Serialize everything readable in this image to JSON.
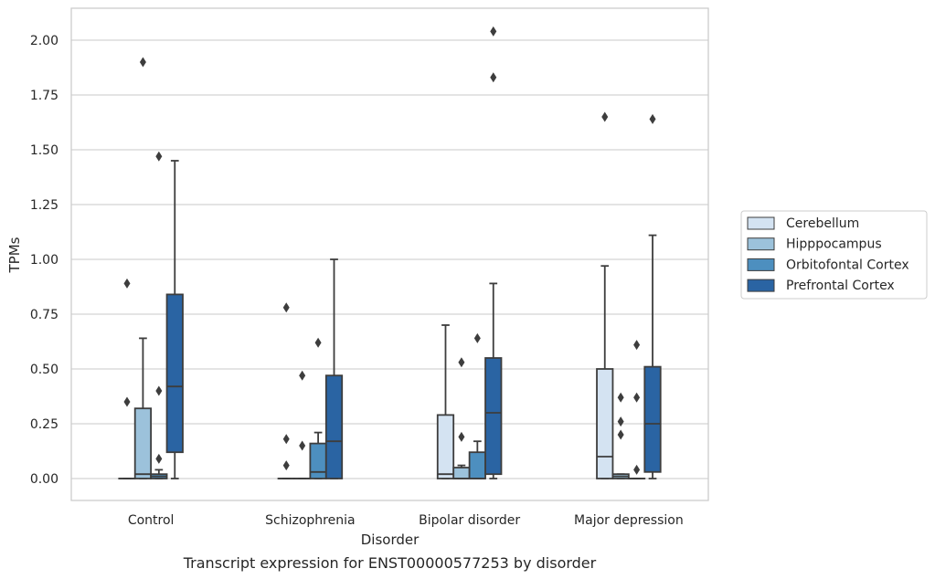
{
  "caption": "Transcript expression for ENST00000577253 by disorder",
  "chart_data": {
    "type": "box",
    "title": "",
    "xlabel": "Disorder",
    "ylabel": "TPMs",
    "ylim": [
      -0.1,
      2.15
    ],
    "yticks": [
      "0.00",
      "0.25",
      "0.50",
      "0.75",
      "1.00",
      "1.25",
      "1.50",
      "1.75",
      "2.00"
    ],
    "grid": "horizontal",
    "legend_position": "right",
    "categories": [
      "Control",
      "Schizophrenia",
      "Bipolar disorder",
      "Major depression"
    ],
    "series": [
      {
        "name": "Cerebellum",
        "color": "#d4e3f2",
        "boxes": [
          {
            "min": 0,
            "q1": 0,
            "median": 0,
            "q3": 0,
            "max": 0,
            "outliers": [
              0.35,
              0.89
            ]
          },
          {
            "min": 0,
            "q1": 0,
            "median": 0,
            "q3": 0,
            "max": 0,
            "outliers": [
              0.06,
              0.18,
              0.78
            ]
          },
          {
            "min": 0,
            "q1": 0,
            "median": 0.02,
            "q3": 0.29,
            "max": 0.7,
            "outliers": []
          },
          {
            "min": 0,
            "q1": 0,
            "median": 0.1,
            "q3": 0.5,
            "max": 0.97,
            "outliers": [
              1.65
            ]
          }
        ]
      },
      {
        "name": "Hipppocampus",
        "color": "#9cc2db",
        "boxes": [
          {
            "min": 0,
            "q1": 0,
            "median": 0.02,
            "q3": 0.32,
            "max": 0.64,
            "outliers": [
              1.9
            ]
          },
          {
            "min": 0,
            "q1": 0,
            "median": 0,
            "q3": 0,
            "max": 0,
            "outliers": [
              0.15,
              0.47
            ]
          },
          {
            "min": 0,
            "q1": 0,
            "median": 0,
            "q3": 0.05,
            "max": 0.06,
            "outliers": [
              0.19,
              0.53
            ]
          },
          {
            "min": 0,
            "q1": 0,
            "median": 0.01,
            "q3": 0.02,
            "max": 0.02,
            "outliers": [
              0.26,
              0.2,
              0.37
            ]
          }
        ]
      },
      {
        "name": "Orbitofontal Cortex",
        "color": "#4d8fbf",
        "boxes": [
          {
            "min": 0,
            "q1": 0,
            "median": 0.01,
            "q3": 0.02,
            "max": 0.04,
            "outliers": [
              0.09,
              0.4,
              1.47
            ]
          },
          {
            "min": 0,
            "q1": 0,
            "median": 0.03,
            "q3": 0.16,
            "max": 0.21,
            "outliers": [
              0.62
            ]
          },
          {
            "min": 0,
            "q1": 0,
            "median": 0,
            "q3": 0.12,
            "max": 0.17,
            "outliers": [
              0.64
            ]
          },
          {
            "min": 0,
            "q1": 0,
            "median": 0,
            "q3": 0,
            "max": 0,
            "outliers": [
              0.04,
              0.37,
              0.61
            ]
          }
        ]
      },
      {
        "name": "Prefrontal Cortex",
        "color": "#2a64a3",
        "boxes": [
          {
            "min": 0,
            "q1": 0.12,
            "median": 0.42,
            "q3": 0.84,
            "max": 1.45,
            "outliers": []
          },
          {
            "min": 0,
            "q1": 0,
            "median": 0.17,
            "q3": 0.47,
            "max": 1.0,
            "outliers": []
          },
          {
            "min": 0,
            "q1": 0.02,
            "median": 0.3,
            "q3": 0.55,
            "max": 0.89,
            "outliers": [
              1.83,
              2.04
            ]
          },
          {
            "min": 0,
            "q1": 0.03,
            "median": 0.25,
            "q3": 0.51,
            "max": 1.11,
            "outliers": [
              1.64
            ]
          }
        ]
      }
    ]
  }
}
